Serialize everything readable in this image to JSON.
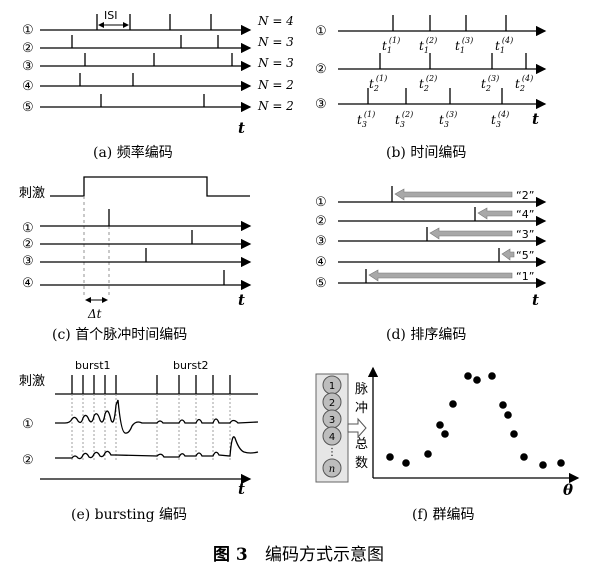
{
  "figure": {
    "caption_label": "图 3",
    "caption_text": "编码方式示意图"
  },
  "panel_a": {
    "caption": "(a)  频率编码",
    "isi": "ISI",
    "axis": "t",
    "rows": [
      {
        "idx": "①",
        "n_label": "N = 4",
        "spikes": [
          2,
          3,
          4,
          5
        ]
      },
      {
        "idx": "②",
        "n_label": "N = 3",
        "spikes": [
          1,
          3,
          4
        ]
      },
      {
        "idx": "③",
        "n_label": "N = 3",
        "spikes": [
          1,
          3,
          4
        ]
      },
      {
        "idx": "④",
        "n_label": "N = 2",
        "spikes": [
          1,
          3
        ]
      },
      {
        "idx": "⑤",
        "n_label": "N = 2",
        "spikes": [
          1,
          4
        ]
      }
    ]
  },
  "panel_b": {
    "caption": "(b)  时间编码",
    "axis": "t",
    "rows": [
      {
        "idx": "①",
        "labels": [
          {
            "sub": "1",
            "sup": "(1)"
          },
          {
            "sub": "1",
            "sup": "(2)"
          },
          {
            "sub": "1",
            "sup": "(3)"
          },
          {
            "sub": "1",
            "sup": "(4)"
          }
        ]
      },
      {
        "idx": "②",
        "labels": [
          {
            "sub": "2",
            "sup": "(1)"
          },
          {
            "sub": "2",
            "sup": "(2)"
          },
          {
            "sub": "2",
            "sup": "(3)"
          },
          {
            "sub": "2",
            "sup": "(4)"
          }
        ]
      },
      {
        "idx": "③",
        "labels": [
          {
            "sub": "3",
            "sup": "(1)"
          },
          {
            "sub": "3",
            "sup": "(2)"
          },
          {
            "sub": "3",
            "sup": "(3)"
          },
          {
            "sub": "3",
            "sup": "(4)"
          }
        ]
      }
    ]
  },
  "panel_c": {
    "caption": "(c)  首个脉冲时间编码",
    "stim_label": "刺激",
    "delta_label": "Δt",
    "axis": "t",
    "rows": [
      "①",
      "②",
      "③",
      "④"
    ]
  },
  "panel_d": {
    "caption": "(d)  排序编码",
    "axis": "t",
    "rows": [
      {
        "idx": "①",
        "rank": "“2”"
      },
      {
        "idx": "②",
        "rank": "“4”"
      },
      {
        "idx": "③",
        "rank": "“3”"
      },
      {
        "idx": "④",
        "rank": "“5”"
      },
      {
        "idx": "⑤",
        "rank": "“1”"
      }
    ]
  },
  "panel_e": {
    "caption": "(e)  bursting 编码",
    "stim_label": "刺激",
    "burst1": "burst1",
    "burst2": "burst2",
    "axis": "t",
    "rows": [
      "①",
      "②"
    ]
  },
  "panel_f": {
    "caption": "(f)  群编码",
    "neurons": [
      "1",
      "2",
      "3",
      "4",
      "⋮",
      "n"
    ],
    "ylabel_chars": [
      "脉",
      "冲",
      "总",
      "数"
    ],
    "axis": "θ"
  }
}
